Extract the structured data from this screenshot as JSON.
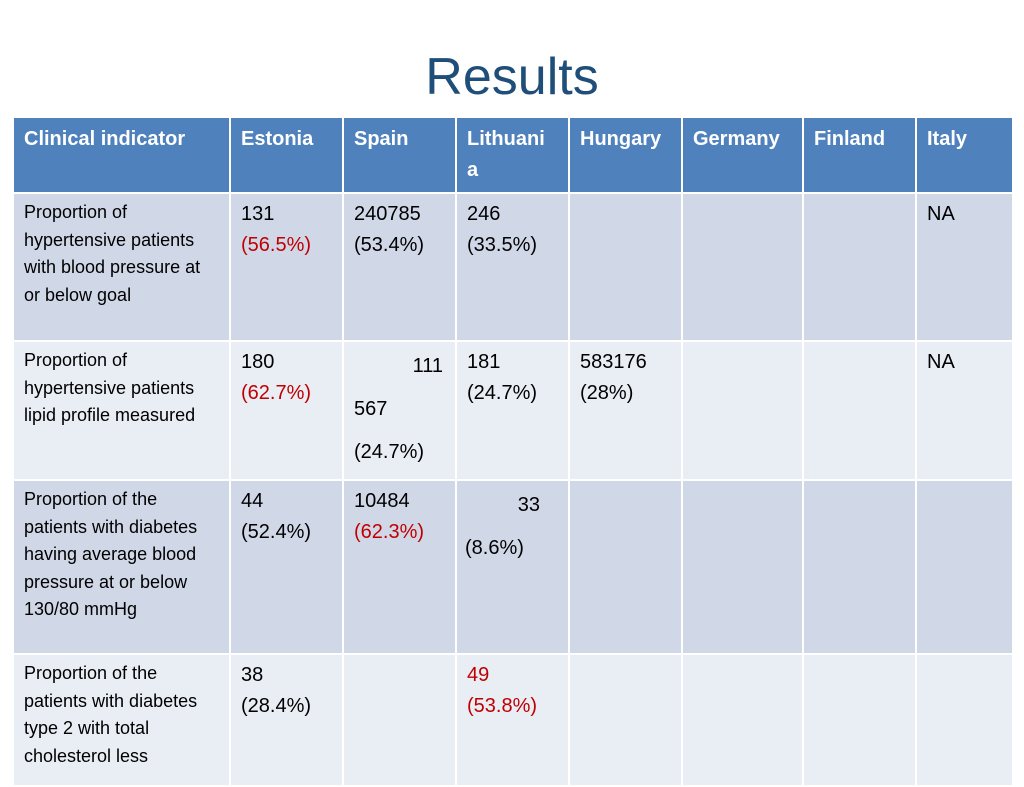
{
  "title": "Results",
  "columns": [
    "Clinical indicator",
    "Estonia",
    "Spain",
    "Lithuani\na",
    "Hungary",
    "Germany",
    "Finland",
    "Italy"
  ],
  "rows": [
    {
      "indicator": "Proportion of hypertensive patients with blood pressure at or below goal",
      "estonia": {
        "n": "131",
        "pct": "(56.5%)",
        "pct_color": "#c00000"
      },
      "spain": {
        "n": "240785",
        "pct": "(53.4%)"
      },
      "lithuania": {
        "n": "246",
        "pct": "(33.5%)"
      },
      "hungary": "",
      "germany": "",
      "finland": "",
      "italy": "NA"
    },
    {
      "indicator": "Proportion of hypertensive patients lipid profile measured",
      "estonia": {
        "n": "180",
        "pct": "(62.7%)",
        "pct_color": "#c00000"
      },
      "spain": {
        "n_a": "111",
        "n_b": "567",
        "pct": "(24.7%)"
      },
      "lithuania": {
        "n": "181",
        "pct": "(24.7%)"
      },
      "hungary": {
        "n": "583176",
        "pct": "(28%)"
      },
      "germany": "",
      "finland": "",
      "italy": "NA"
    },
    {
      "indicator": "Proportion of the patients with diabetes having average blood pressure at or below 130/80 mmHg",
      "estonia": {
        "n": "44",
        "pct": "(52.4%)"
      },
      "spain": {
        "n": "10484",
        "pct": "(62.3%)",
        "pct_color": "#c00000"
      },
      "lithuania": {
        "n": "33",
        "pct": "(8.6%)"
      },
      "hungary": "",
      "germany": "",
      "finland": "",
      "italy": ""
    },
    {
      "indicator": "Proportion of the patients with diabetes type 2  with total cholesterol  less",
      "estonia": {
        "n": "38",
        "pct": "(28.4%)"
      },
      "spain": "",
      "lithuania": {
        "n": "49",
        "pct": "(53.8%)",
        "pct_color": "#c00000"
      },
      "hungary": "",
      "germany": "",
      "finland": "",
      "italy": ""
    }
  ]
}
